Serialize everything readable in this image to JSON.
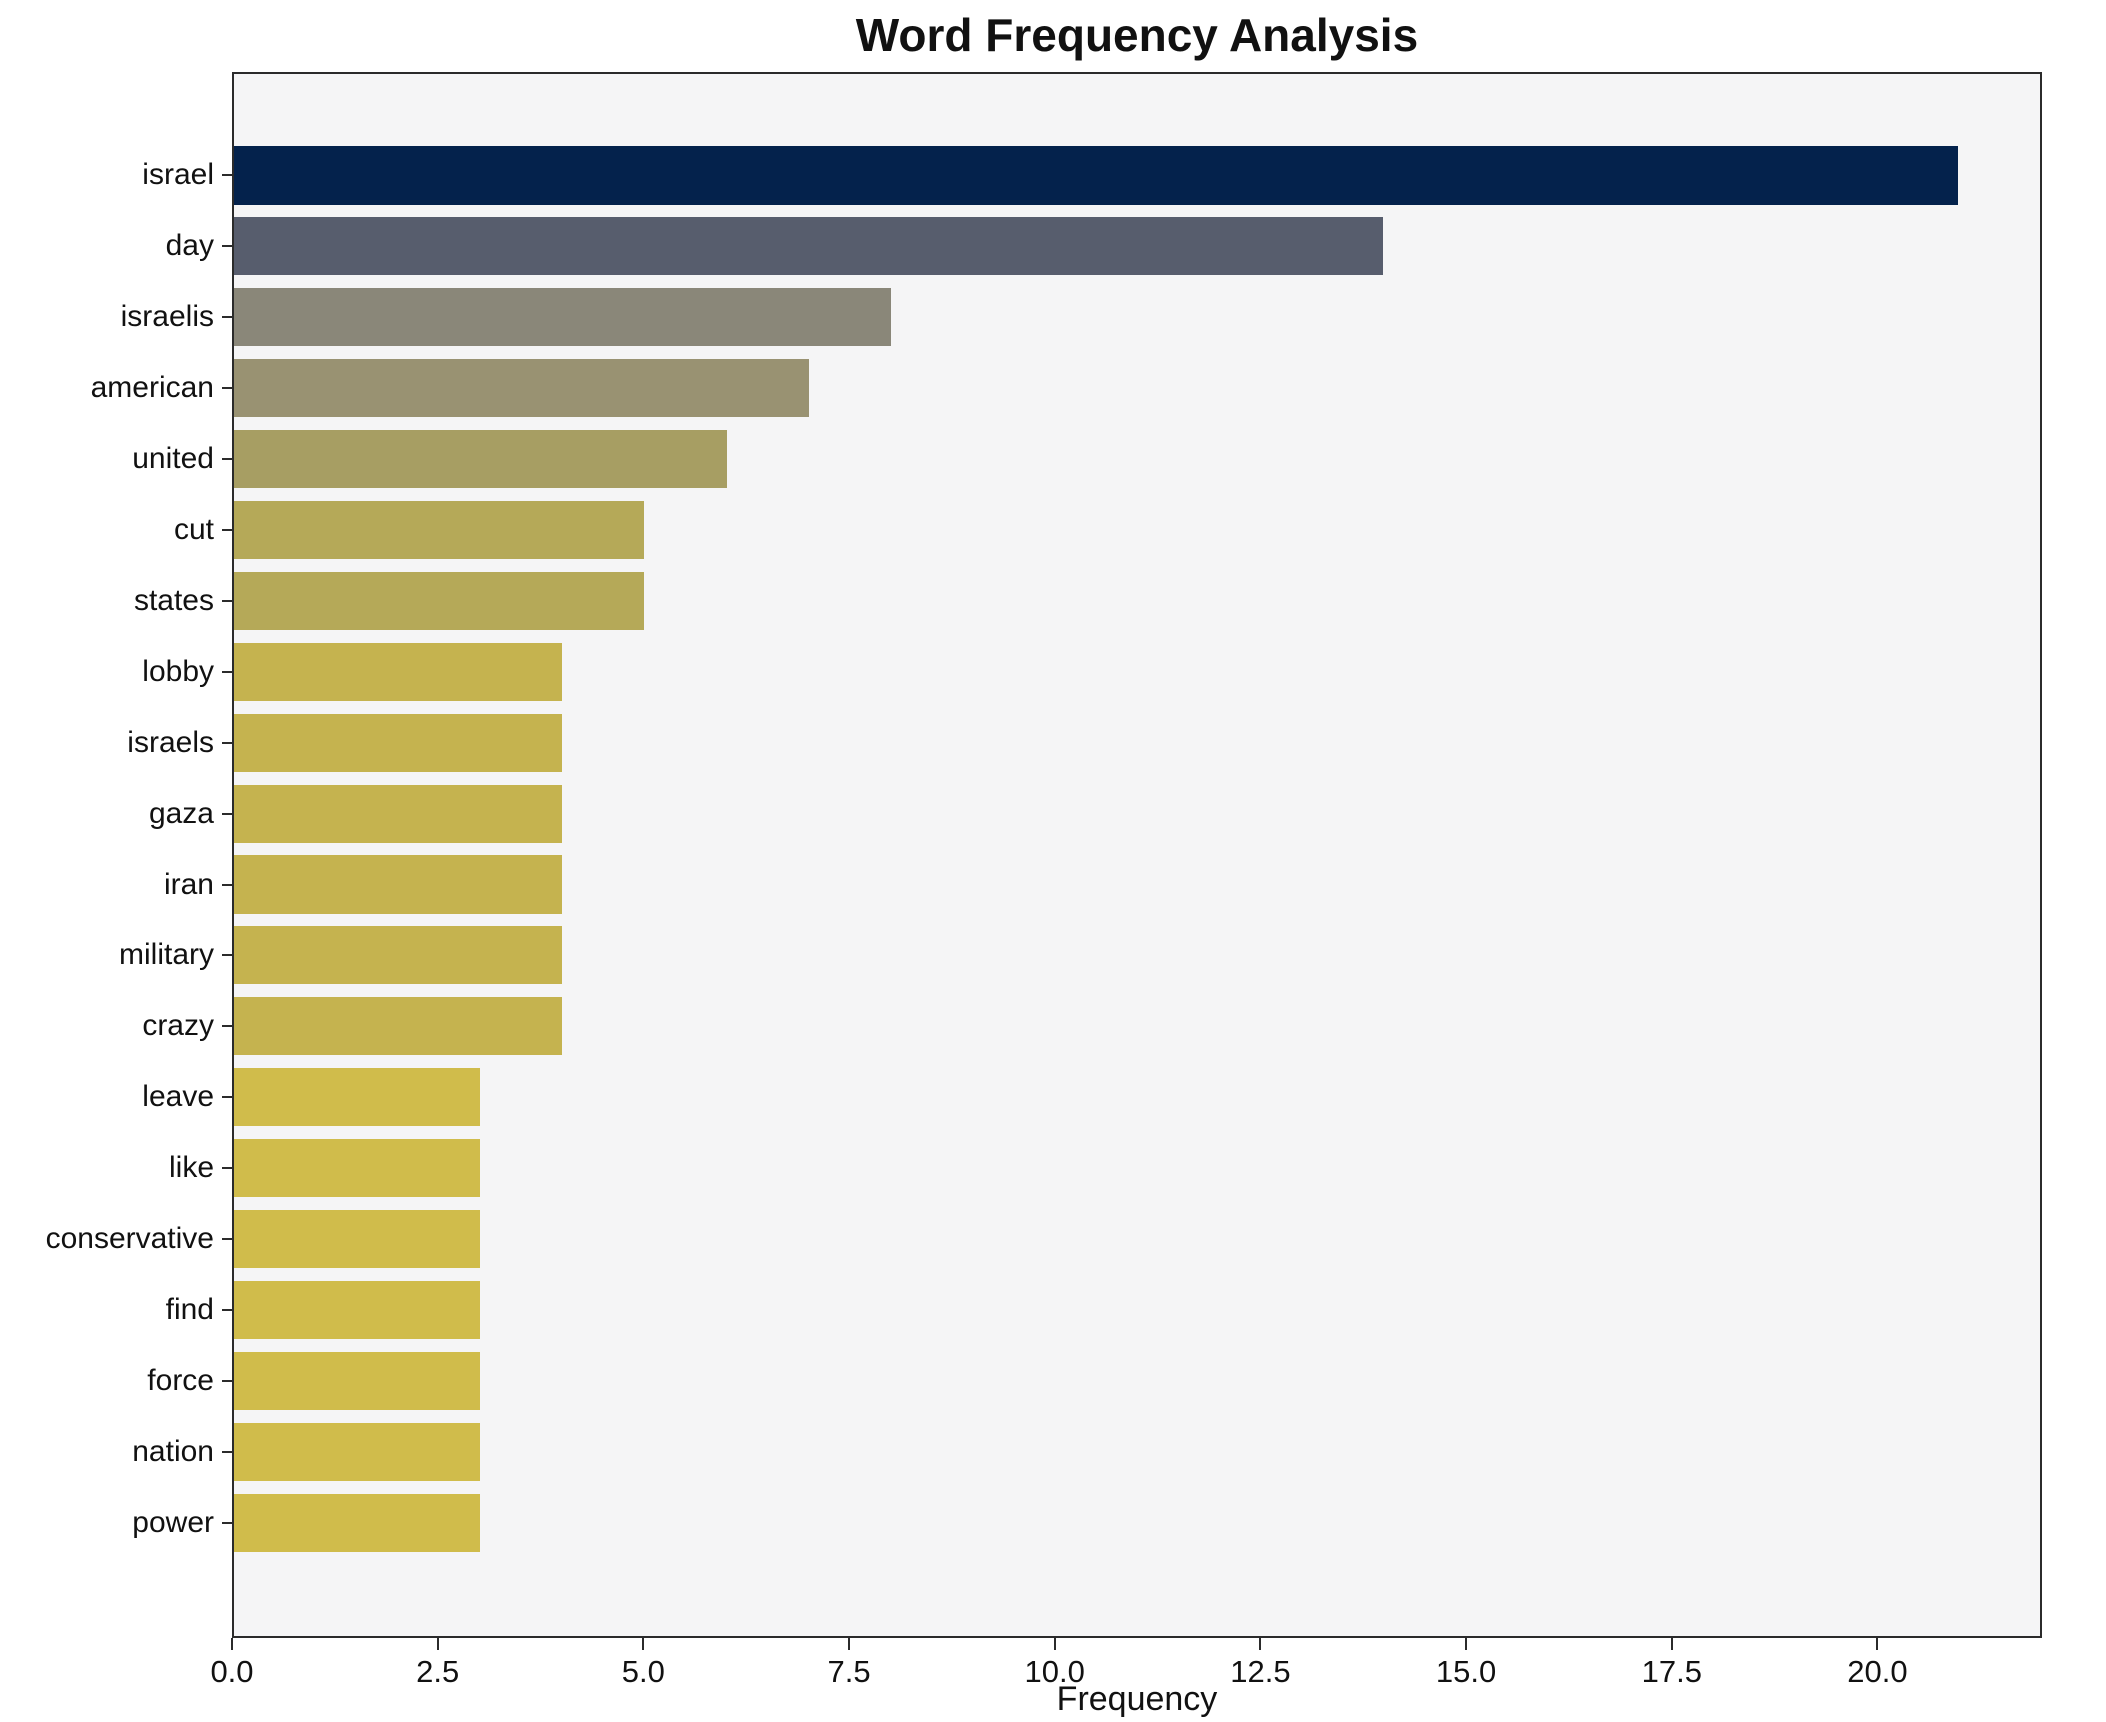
{
  "chart_data": {
    "type": "bar",
    "orientation": "horizontal",
    "title": "Word Frequency Analysis",
    "xlabel": "Frequency",
    "ylabel": "",
    "categories": [
      "israel",
      "day",
      "israelis",
      "american",
      "united",
      "cut",
      "states",
      "lobby",
      "israels",
      "gaza",
      "iran",
      "military",
      "crazy",
      "leave",
      "like",
      "conservative",
      "find",
      "force",
      "nation",
      "power"
    ],
    "values": [
      21,
      14,
      8,
      7,
      6,
      5,
      5,
      4,
      4,
      4,
      4,
      4,
      4,
      3,
      3,
      3,
      3,
      3,
      3,
      3
    ],
    "bar_colors": [
      "#04224c",
      "#575d6d",
      "#8a8779",
      "#999272",
      "#a79e63",
      "#b5a958",
      "#b5a958",
      "#c5b34f",
      "#c5b34f",
      "#c5b34f",
      "#c5b34f",
      "#c5b34f",
      "#c5b34f",
      "#d0bc4b",
      "#d0bc4b",
      "#d0bc4b",
      "#d0bc4b",
      "#d0bc4b",
      "#d0bc4b",
      "#d0bc4b"
    ],
    "xlim": [
      0,
      22
    ],
    "xticks": [
      0.0,
      2.5,
      5.0,
      7.5,
      10.0,
      12.5,
      15.0,
      17.5,
      20.0
    ],
    "xtick_labels": [
      "0.0",
      "2.5",
      "5.0",
      "7.5",
      "10.0",
      "12.5",
      "15.0",
      "17.5",
      "20.0"
    ],
    "grid": false,
    "legend": "none",
    "plot_background": "#f5f5f6",
    "figure_background": "#ffffff"
  }
}
